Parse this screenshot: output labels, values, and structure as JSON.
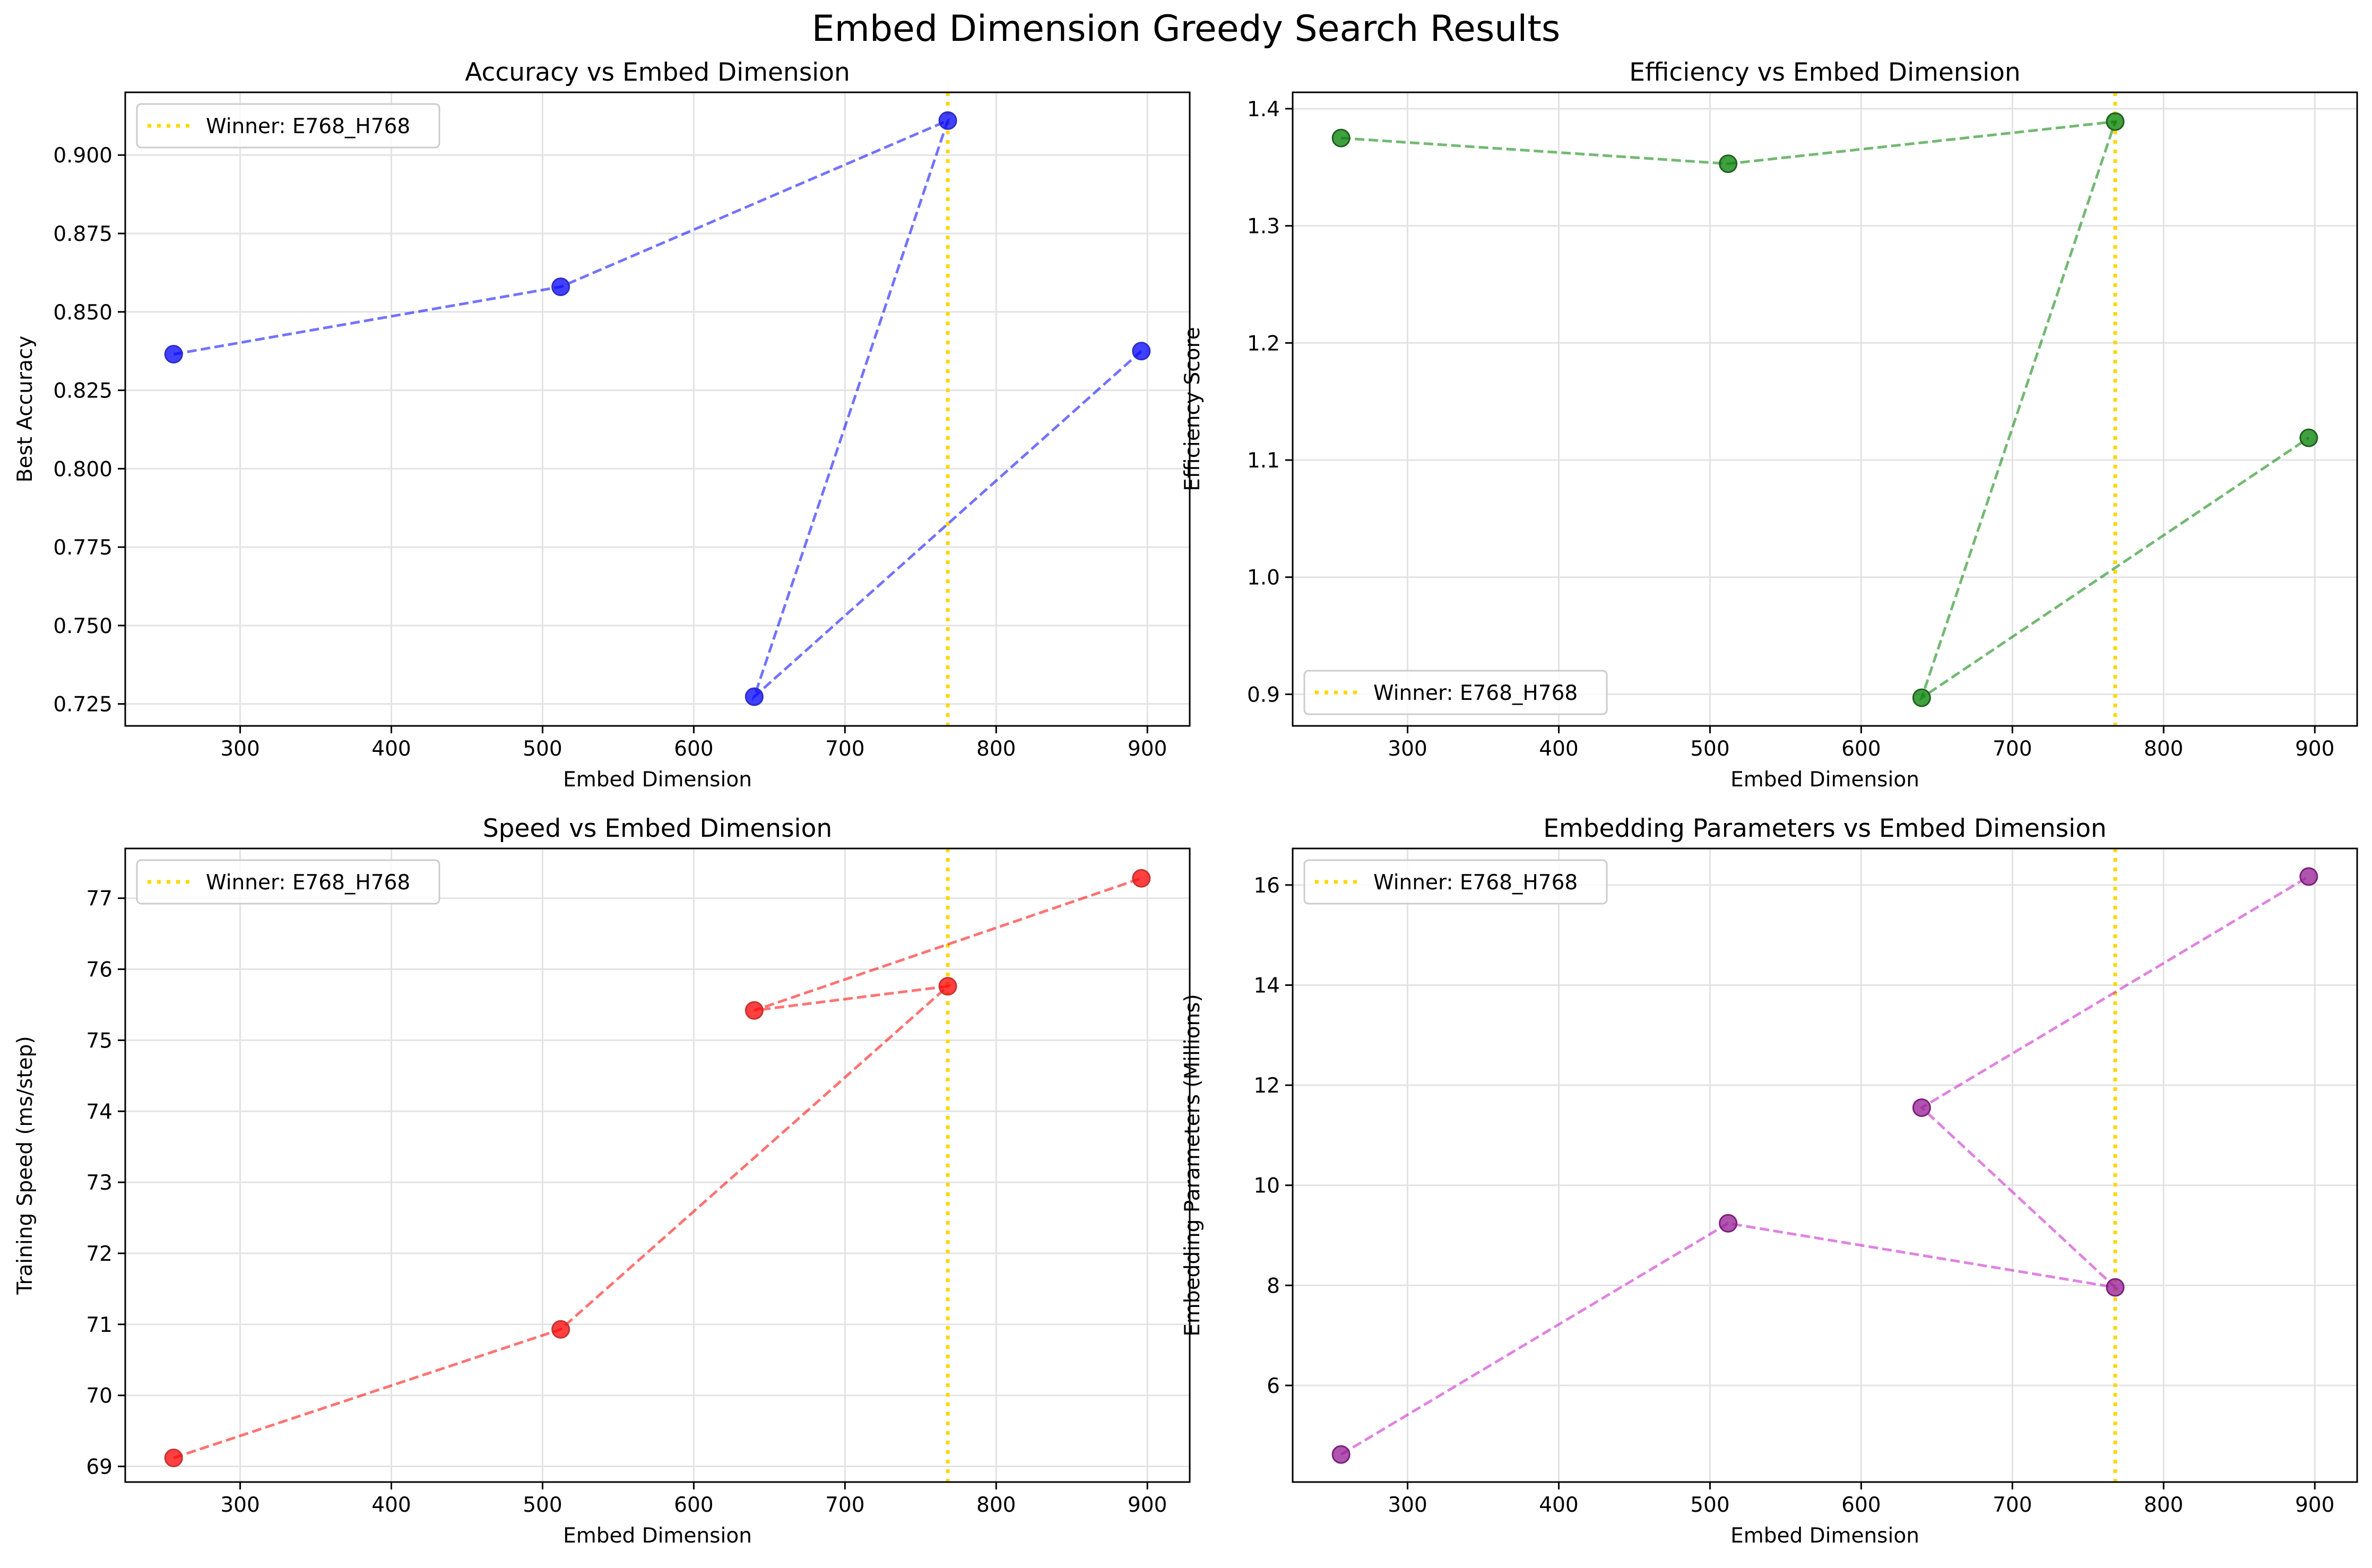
{
  "figure": {
    "title": "Embed Dimension Greedy Search Results"
  },
  "chart_data": [
    {
      "type": "line",
      "title": "Accuracy vs Embed Dimension",
      "xlabel": "Embed Dimension",
      "ylabel": "Best Accuracy",
      "x": [
        256,
        512,
        768,
        640,
        896
      ],
      "y": [
        0.8365,
        0.858,
        0.911,
        0.7273,
        0.8375
      ],
      "xlim": [
        224,
        928
      ],
      "ylim": [
        0.718,
        0.92
      ],
      "xticks": [
        300,
        400,
        500,
        600,
        700,
        800,
        900
      ],
      "yticks": [
        0.725,
        0.75,
        0.775,
        0.8,
        0.825,
        0.85,
        0.875,
        0.9
      ],
      "ytick_labels": [
        "0.725",
        "0.750",
        "0.775",
        "0.800",
        "0.825",
        "0.850",
        "0.875",
        "0.900"
      ],
      "color": "#0000ff",
      "marker_stroke": "#2d2dc8",
      "winner_x": 768,
      "winner_label": "Winner: E768_H768",
      "winner_color": "#ffd700",
      "legend_loc": "upper left",
      "grid": true
    },
    {
      "type": "line",
      "title": "Efficiency vs Embed Dimension",
      "xlabel": "Embed Dimension",
      "ylabel": "Efficiency Score",
      "x": [
        256,
        512,
        768,
        640,
        896
      ],
      "y": [
        1.375,
        1.353,
        1.389,
        0.897,
        1.119
      ],
      "xlim": [
        224,
        928
      ],
      "ylim": [
        0.873,
        1.414
      ],
      "xticks": [
        300,
        400,
        500,
        600,
        700,
        800,
        900
      ],
      "yticks": [
        0.9,
        1.0,
        1.1,
        1.2,
        1.3,
        1.4
      ],
      "ytick_labels": [
        "0.9",
        "1.0",
        "1.1",
        "1.2",
        "1.3",
        "1.4"
      ],
      "color": "#008000",
      "marker_stroke": "#1f5f1f",
      "winner_x": 768,
      "winner_label": "Winner: E768_H768",
      "winner_color": "#ffd700",
      "legend_loc": "lower left",
      "grid": true
    },
    {
      "type": "line",
      "title": "Speed vs Embed Dimension",
      "xlabel": "Embed Dimension",
      "ylabel": "Training Speed (ms/step)",
      "x": [
        256,
        512,
        768,
        640,
        896
      ],
      "y": [
        69.12,
        70.93,
        75.76,
        75.42,
        77.28
      ],
      "xlim": [
        224,
        928
      ],
      "ylim": [
        68.78,
        77.7
      ],
      "xticks": [
        300,
        400,
        500,
        600,
        700,
        800,
        900
      ],
      "yticks": [
        69,
        70,
        71,
        72,
        73,
        74,
        75,
        76,
        77
      ],
      "ytick_labels": [
        "69",
        "70",
        "71",
        "72",
        "73",
        "74",
        "75",
        "76",
        "77"
      ],
      "color": "#ff0000",
      "marker_stroke": "#c83232",
      "winner_x": 768,
      "winner_label": "Winner: E768_H768",
      "winner_color": "#ffd700",
      "legend_loc": "upper left",
      "grid": true
    },
    {
      "type": "line",
      "title": "Embedding Parameters vs Embed Dimension",
      "xlabel": "Embed Dimension",
      "ylabel": "Embedding Parameters (Millions)",
      "x": [
        256,
        512,
        768,
        640,
        896
      ],
      "y": [
        4.62,
        9.24,
        7.96,
        11.55,
        16.17
      ],
      "xlim": [
        224,
        928
      ],
      "ylim": [
        4.07,
        16.73
      ],
      "xticks": [
        300,
        400,
        500,
        600,
        700,
        800,
        900
      ],
      "yticks": [
        6,
        8,
        10,
        12,
        14,
        16
      ],
      "ytick_labels": [
        "6",
        "8",
        "10",
        "12",
        "14",
        "16"
      ],
      "color": "#c71ec7",
      "marker_stroke": "#7a207a",
      "marker_fill": "#941c94",
      "winner_x": 768,
      "winner_label": "Winner: E768_H768",
      "winner_color": "#ffd700",
      "legend_loc": "upper left",
      "grid": true
    }
  ]
}
